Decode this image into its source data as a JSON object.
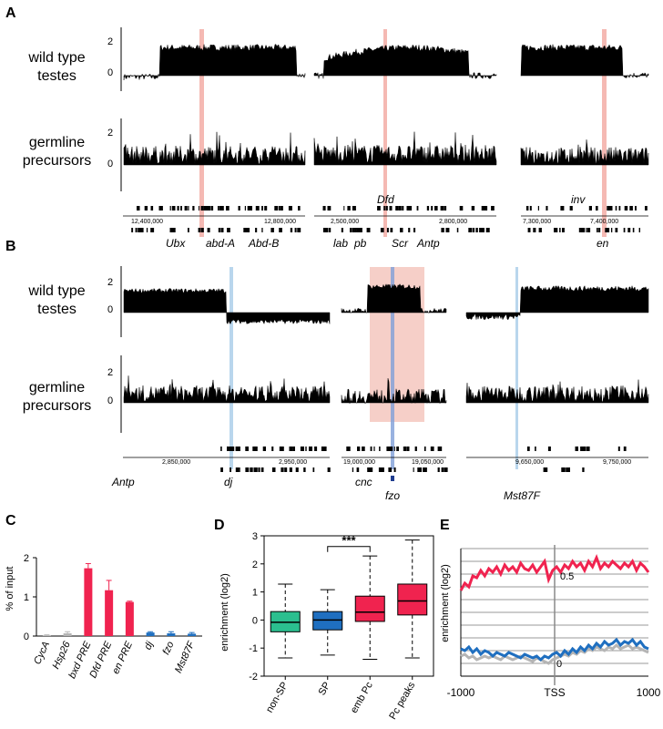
{
  "panels": {
    "A": "A",
    "B": "B",
    "C": "C",
    "D": "D",
    "E": "E"
  },
  "rows": {
    "wt": [
      "wild type",
      "testes"
    ],
    "gp": [
      "germline",
      "precursors"
    ]
  },
  "track_ticks": {
    "two": "2",
    "zero": "0"
  },
  "panelA": {
    "genes": [
      "Ubx",
      "abd-A",
      "Abd-B",
      "Dfd",
      "lab",
      "pb",
      "Scr",
      "Antp",
      "inv",
      "en"
    ],
    "coords": [
      "12,400,000",
      "12,800,000",
      "2,500,000",
      "2,800,000",
      "7,300,000",
      "7,400,000"
    ]
  },
  "panelB": {
    "genes": [
      "Antp",
      "dj",
      "cnc",
      "fzo",
      "Mst87F"
    ],
    "coords": [
      "2,850,000",
      "2,950,000",
      "19,000,000",
      "19,050,000",
      "9,650,000",
      "9,750,000"
    ]
  },
  "colors": {
    "red": "#f0234f",
    "blue": "#1f6fc0",
    "green": "#2bbf8f",
    "grey": "#b5b5b5",
    "pink_band": "#f3a8a0",
    "blue_band": "#a8cce8"
  },
  "chart_data": [
    {
      "type": "bar",
      "panel": "C",
      "ylabel": "% of input",
      "ylim": [
        0,
        2
      ],
      "yticks": [
        "0",
        "1",
        "2"
      ],
      "categories": [
        "CycA",
        "Hsp26",
        "bxd PRE",
        "Dfd PRE",
        "en PRE",
        "dj",
        "fzo",
        "Mst87F"
      ],
      "values": [
        0.02,
        0.07,
        1.73,
        1.17,
        0.87,
        0.09,
        0.07,
        0.06
      ],
      "errors": [
        0.01,
        0.04,
        0.12,
        0.25,
        0.02,
        0.02,
        0.04,
        0.03
      ],
      "bar_colors": [
        "grey",
        "grey",
        "red",
        "red",
        "red",
        "blue",
        "blue",
        "blue"
      ]
    },
    {
      "type": "box",
      "panel": "D",
      "ylabel": "enrichment (log2)",
      "ylim": [
        -2,
        3
      ],
      "yticks": [
        "-2",
        "-1",
        "0",
        "1",
        "2",
        "3"
      ],
      "categories": [
        "non-SP",
        "SP",
        "emb Pc",
        "Pc peaks"
      ],
      "boxes": [
        {
          "min": -1.35,
          "q1": -0.42,
          "median": -0.08,
          "q3": 0.3,
          "max": 1.28,
          "color": "green"
        },
        {
          "min": -1.25,
          "q1": -0.35,
          "median": 0.0,
          "q3": 0.3,
          "max": 1.08,
          "color": "blue"
        },
        {
          "min": -1.4,
          "q1": -0.05,
          "median": 0.28,
          "q3": 0.85,
          "max": 2.28,
          "color": "red"
        },
        {
          "min": -1.35,
          "q1": 0.18,
          "median": 0.68,
          "q3": 1.28,
          "max": 2.85,
          "color": "red"
        }
      ],
      "significance": "***"
    },
    {
      "type": "line",
      "panel": "E",
      "ylabel": "enrichment (log2)",
      "xticks": [
        "-1000",
        "TSS",
        "1000"
      ],
      "annotations": [
        "0.5",
        "0"
      ],
      "series": [
        {
          "color": "red",
          "values": [
            0.42,
            0.46,
            0.44,
            0.5,
            0.49,
            0.53,
            0.5,
            0.54,
            0.52,
            0.55,
            0.51,
            0.56,
            0.53,
            0.55,
            0.52,
            0.57,
            0.54,
            0.53,
            0.56,
            0.52,
            0.55,
            0.58,
            0.48,
            0.53,
            0.55,
            0.52,
            0.56,
            0.54,
            0.58,
            0.55,
            0.57,
            0.53,
            0.58,
            0.55,
            0.6,
            0.54,
            0.57,
            0.55,
            0.58,
            0.56,
            0.54,
            0.57,
            0.55,
            0.58,
            0.53,
            0.57,
            0.55,
            0.52
          ]
        },
        {
          "color": "blue",
          "values": [
            0.1,
            0.09,
            0.11,
            0.08,
            0.1,
            0.07,
            0.09,
            0.08,
            0.06,
            0.08,
            0.07,
            0.06,
            0.08,
            0.07,
            0.06,
            0.05,
            0.07,
            0.06,
            0.05,
            0.06,
            0.04,
            0.06,
            0.05,
            0.07,
            0.08,
            0.06,
            0.09,
            0.07,
            0.1,
            0.08,
            0.11,
            0.09,
            0.12,
            0.1,
            0.13,
            0.11,
            0.14,
            0.12,
            0.13,
            0.15,
            0.12,
            0.14,
            0.13,
            0.15,
            0.12,
            0.14,
            0.11,
            0.1
          ]
        },
        {
          "color": "grey",
          "values": [
            0.06,
            0.07,
            0.05,
            0.06,
            0.04,
            0.05,
            0.06,
            0.05,
            0.06,
            0.05,
            0.04,
            0.06,
            0.05,
            0.04,
            0.05,
            0.06,
            0.05,
            0.04,
            0.03,
            0.05,
            0.04,
            0.03,
            0.02,
            0.04,
            0.05,
            0.06,
            0.07,
            0.06,
            0.08,
            0.07,
            0.09,
            0.08,
            0.1,
            0.09,
            0.11,
            0.1,
            0.09,
            0.11,
            0.1,
            0.12,
            0.1,
            0.11,
            0.12,
            0.1,
            0.11,
            0.1,
            0.09,
            0.08
          ]
        }
      ]
    }
  ]
}
